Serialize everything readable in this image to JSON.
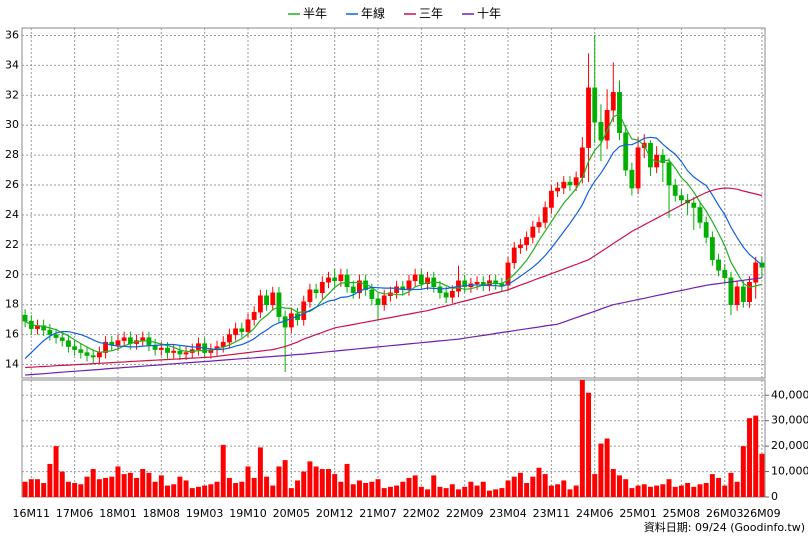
{
  "chart_data": {
    "type": "candlestick",
    "categories": [
      null,
      "16M11",
      null,
      null,
      null,
      null,
      null,
      null,
      "17M06",
      null,
      null,
      null,
      null,
      null,
      null,
      "18M01",
      null,
      null,
      null,
      null,
      null,
      null,
      "18M08",
      null,
      null,
      null,
      null,
      null,
      null,
      "19M03",
      null,
      null,
      null,
      null,
      null,
      null,
      "19M10",
      null,
      null,
      null,
      null,
      null,
      null,
      "20M05",
      null,
      null,
      null,
      null,
      null,
      null,
      "20M12",
      null,
      null,
      null,
      null,
      null,
      null,
      "21M07",
      null,
      null,
      null,
      null,
      null,
      null,
      "22M02",
      null,
      null,
      null,
      null,
      null,
      null,
      "22M09",
      null,
      null,
      null,
      null,
      null,
      null,
      "23M04",
      null,
      null,
      null,
      null,
      null,
      null,
      "23M11",
      null,
      null,
      null,
      null,
      null,
      null,
      "24M06",
      null,
      null,
      null,
      null,
      null,
      null,
      "25M01",
      null,
      null,
      null,
      null,
      null,
      null,
      "25M08",
      null,
      null,
      null,
      null,
      null,
      null,
      "26M03",
      null,
      null,
      null,
      null,
      null,
      "26M09"
    ],
    "open": [
      17.3,
      16.9,
      16.4,
      16.6,
      16.3,
      16.0,
      15.8,
      15.6,
      15.2,
      15.0,
      14.8,
      14.6,
      14.5,
      14.8,
      15.5,
      15.3,
      15.6,
      15.8,
      15.4,
      15.6,
      15.8,
      15.3,
      15.0,
      15.1,
      14.8,
      14.9,
      14.7,
      14.8,
      15.0,
      15.4,
      14.8,
      15.0,
      15.2,
      15.5,
      16.0,
      16.4,
      16.2,
      17.0,
      17.5,
      18.6,
      18.0,
      18.8,
      17.2,
      16.5,
      17.4,
      17.0,
      18.2,
      19.0,
      18.8,
      19.5,
      19.8,
      19.6,
      20.0,
      19.2,
      18.8,
      19.6,
      19.0,
      18.4,
      18.0,
      18.6,
      18.8,
      19.2,
      19.0,
      19.6,
      20.0,
      19.4,
      19.8,
      19.2,
      18.8,
      18.5,
      18.9,
      19.6,
      19.2,
      19.4,
      19.5,
      19.3,
      19.6,
      19.4,
      19.3,
      20.8,
      21.8,
      22.0,
      22.5,
      23.2,
      23.5,
      24.5,
      25.6,
      25.8,
      26.2,
      26.0,
      26.5,
      28.5,
      32.5,
      30.2,
      29.0,
      31.0,
      32.2,
      29.5,
      27.0,
      25.8,
      28.5,
      28.8,
      27.2,
      28.0,
      27.5,
      26.0,
      25.3,
      25.0,
      24.8,
      24.5,
      23.5,
      22.5,
      21.0,
      20.3,
      19.8,
      18.0,
      19.2,
      18.2,
      19.5,
      20.8
    ],
    "high": [
      17.7,
      17.3,
      17.0,
      17.0,
      16.7,
      16.4,
      16.2,
      16.0,
      15.6,
      15.4,
      15.2,
      15.0,
      15.2,
      15.9,
      15.9,
      16.0,
      16.2,
      16.2,
      16.0,
      16.2,
      16.2,
      15.7,
      15.5,
      15.5,
      15.3,
      15.3,
      15.2,
      15.4,
      15.8,
      15.8,
      15.4,
      15.6,
      15.9,
      16.4,
      16.8,
      16.8,
      17.4,
      17.9,
      19.0,
      19.0,
      19.2,
      19.2,
      17.6,
      17.8,
      17.8,
      18.6,
      19.4,
      19.4,
      19.9,
      20.2,
      20.4,
      20.4,
      20.4,
      19.6,
      20.0,
      20.0,
      19.4,
      18.8,
      19.0,
      19.2,
      19.6,
      19.6,
      20.0,
      20.4,
      20.4,
      20.2,
      20.2,
      19.6,
      19.2,
      19.3,
      20.6,
      20.0,
      19.8,
      19.9,
      19.9,
      20.0,
      20.0,
      19.8,
      21.2,
      22.2,
      22.4,
      22.9,
      23.6,
      23.9,
      24.9,
      26.0,
      26.2,
      26.6,
      26.6,
      26.9,
      29.2,
      34.8,
      36.0,
      31.4,
      32.4,
      34.2,
      33.0,
      30.0,
      27.5,
      29.2,
      29.4,
      29.0,
      28.6,
      28.4,
      27.8,
      26.4,
      25.7,
      25.4,
      25.2,
      24.9,
      23.9,
      22.9,
      21.4,
      20.7,
      20.2,
      19.6,
      19.6,
      19.9,
      21.2,
      21.2
    ],
    "low": [
      16.5,
      16.0,
      16.0,
      15.9,
      15.6,
      15.4,
      15.2,
      14.8,
      14.6,
      14.4,
      14.2,
      14.1,
      14.1,
      14.4,
      14.9,
      14.9,
      15.2,
      15.0,
      15.0,
      15.2,
      14.9,
      14.6,
      14.6,
      14.4,
      14.4,
      14.3,
      14.3,
      14.4,
      14.6,
      14.4,
      14.4,
      14.6,
      14.8,
      15.1,
      15.6,
      15.8,
      15.8,
      16.6,
      17.1,
      17.6,
      17.6,
      16.8,
      13.5,
      16.1,
      16.6,
      16.6,
      17.8,
      18.4,
      18.4,
      19.1,
      19.2,
      19.2,
      18.8,
      18.4,
      18.4,
      18.6,
      18.0,
      17.0,
      17.6,
      18.2,
      18.4,
      18.6,
      18.6,
      19.2,
      19.0,
      19.0,
      18.8,
      18.4,
      18.1,
      18.1,
      18.5,
      18.8,
      18.8,
      19.0,
      18.9,
      18.9,
      19.0,
      18.9,
      18.9,
      20.4,
      21.4,
      21.6,
      22.1,
      22.8,
      23.1,
      24.1,
      25.2,
      25.4,
      25.6,
      25.6,
      26.1,
      26.2,
      28.8,
      27.6,
      28.4,
      30.2,
      29.0,
      26.6,
      25.3,
      25.4,
      27.8,
      26.6,
      26.8,
      26.2,
      23.8,
      24.9,
      24.6,
      24.0,
      23.0,
      23.1,
      22.1,
      20.6,
      19.9,
      19.4,
      17.3,
      17.6,
      17.8,
      17.8,
      18.4,
      19.8
    ],
    "close": [
      16.9,
      16.4,
      16.6,
      16.3,
      16.0,
      15.8,
      15.6,
      15.2,
      15.0,
      14.8,
      14.6,
      14.5,
      14.8,
      15.5,
      15.3,
      15.6,
      15.8,
      15.4,
      15.6,
      15.8,
      15.3,
      15.0,
      15.1,
      14.8,
      14.9,
      14.7,
      14.8,
      15.0,
      15.4,
      14.8,
      15.0,
      15.2,
      15.5,
      16.0,
      16.4,
      16.2,
      17.0,
      17.5,
      18.6,
      18.0,
      18.8,
      17.2,
      16.5,
      17.4,
      17.0,
      18.2,
      19.0,
      18.8,
      19.5,
      19.8,
      19.6,
      20.0,
      19.2,
      18.8,
      19.6,
      19.0,
      18.4,
      18.0,
      18.6,
      18.8,
      19.2,
      19.0,
      19.6,
      20.0,
      19.4,
      19.8,
      19.2,
      18.8,
      18.5,
      18.9,
      19.6,
      19.2,
      19.4,
      19.5,
      19.3,
      19.6,
      19.4,
      19.3,
      20.8,
      21.8,
      22.0,
      22.5,
      23.2,
      23.5,
      24.5,
      25.6,
      25.8,
      26.2,
      26.0,
      26.5,
      28.5,
      32.5,
      30.2,
      29.0,
      31.0,
      32.2,
      29.5,
      27.0,
      25.8,
      28.5,
      28.8,
      27.2,
      28.0,
      27.5,
      26.0,
      25.3,
      25.0,
      24.8,
      24.5,
      23.5,
      22.5,
      21.0,
      20.3,
      19.8,
      18.0,
      19.2,
      18.2,
      19.5,
      20.8,
      20.5
    ],
    "up_color": "#ff0000",
    "down_color": "#00b000",
    "series": [
      {
        "name": "半年",
        "color": "#22b022",
        "values": [
          16.9,
          16.65,
          16.6,
          16.55,
          16.44,
          16.33,
          16.12,
          15.92,
          15.65,
          15.4,
          15.17,
          14.95,
          14.82,
          14.87,
          14.92,
          15.05,
          15.25,
          15.4,
          15.53,
          15.58,
          15.58,
          15.48,
          15.37,
          15.27,
          15.15,
          14.97,
          14.88,
          14.88,
          14.93,
          14.93,
          14.95,
          15.03,
          15.15,
          15.32,
          15.52,
          15.72,
          16.05,
          16.43,
          16.95,
          17.28,
          17.68,
          17.85,
          17.77,
          17.75,
          17.48,
          17.52,
          17.55,
          17.82,
          18.32,
          18.72,
          19.15,
          19.45,
          19.48,
          19.48,
          19.5,
          19.37,
          19.17,
          18.83,
          18.73,
          18.73,
          18.67,
          18.67,
          18.87,
          19.2,
          19.33,
          19.5,
          19.5,
          19.47,
          19.28,
          19.1,
          19.13,
          19.03,
          19.07,
          19.18,
          19.32,
          19.43,
          19.4,
          19.42,
          19.65,
          20.03,
          20.48,
          20.97,
          21.6,
          22.3,
          22.92,
          23.55,
          24.18,
          24.8,
          25.27,
          25.77,
          26.43,
          27.58,
          28.32,
          28.78,
          29.62,
          30.57,
          30.73,
          29.82,
          29.08,
          29.0,
          28.63,
          27.8,
          27.55,
          27.63,
          27.67,
          27.13,
          26.5,
          26.1,
          25.52,
          24.85,
          24.27,
          23.55,
          22.77,
          21.93,
          20.85,
          20.13,
          19.42,
          19.17,
          19.25,
          19.37
        ]
      },
      {
        "name": "年線",
        "color": "#1060e0",
        "values": [
          14.4,
          14.8,
          15.2,
          15.6,
          15.9,
          16.1,
          16.2,
          16.2,
          16.1,
          16.0,
          15.85,
          15.65,
          15.47,
          15.4,
          15.29,
          15.23,
          15.21,
          15.18,
          15.18,
          15.23,
          15.25,
          15.27,
          15.31,
          15.34,
          15.34,
          15.28,
          15.23,
          15.18,
          15.15,
          15.1,
          15.05,
          15.0,
          15.02,
          15.1,
          15.23,
          15.33,
          15.5,
          15.73,
          16.05,
          16.3,
          16.6,
          16.79,
          16.91,
          17.09,
          17.22,
          17.4,
          17.62,
          17.84,
          18.05,
          18.24,
          18.32,
          18.49,
          18.52,
          18.65,
          18.91,
          19.05,
          19.16,
          19.14,
          19.11,
          19.11,
          19.09,
          19.02,
          19.02,
          19.02,
          19.03,
          19.12,
          19.09,
          19.07,
          19.08,
          19.15,
          19.23,
          19.27,
          19.29,
          19.33,
          19.3,
          19.27,
          19.27,
          19.23,
          19.36,
          19.61,
          19.9,
          20.2,
          20.5,
          20.86,
          21.29,
          21.79,
          22.33,
          22.89,
          23.44,
          24.04,
          24.68,
          25.57,
          26.25,
          26.79,
          27.45,
          28.17,
          28.58,
          28.7,
          28.7,
          28.89,
          29.13,
          29.19,
          29.14,
          28.73,
          28.38,
          28.07,
          27.57,
          26.95,
          26.54,
          26.24,
          25.97,
          25.34,
          24.64,
          24.02,
          23.19,
          22.49,
          21.85,
          21.36,
          21.01,
          20.65
        ]
      },
      {
        "name": "三年",
        "color": "#d0104a",
        "values": [
          13.8,
          13.82,
          13.85,
          13.87,
          13.89,
          13.92,
          13.94,
          13.96,
          13.99,
          14.01,
          14.03,
          14.06,
          14.08,
          14.1,
          14.13,
          14.15,
          14.17,
          14.2,
          14.22,
          14.24,
          14.27,
          14.29,
          14.31,
          14.34,
          14.36,
          14.38,
          14.41,
          14.43,
          14.45,
          14.48,
          14.5,
          14.55,
          14.6,
          14.65,
          14.7,
          14.75,
          14.8,
          14.85,
          14.9,
          14.95,
          15.0,
          15.1,
          15.2,
          15.35,
          15.5,
          15.7,
          15.85,
          16.0,
          16.15,
          16.3,
          16.45,
          16.53,
          16.6,
          16.68,
          16.76,
          16.83,
          16.91,
          16.99,
          17.07,
          17.14,
          17.22,
          17.3,
          17.37,
          17.45,
          17.53,
          17.6,
          17.71,
          17.82,
          17.92,
          18.03,
          18.14,
          18.25,
          18.35,
          18.46,
          18.57,
          18.68,
          18.78,
          18.89,
          19.0,
          19.15,
          19.31,
          19.46,
          19.62,
          19.77,
          19.92,
          20.08,
          20.23,
          20.38,
          20.54,
          20.69,
          20.85,
          21.0,
          21.27,
          21.54,
          21.81,
          22.09,
          22.36,
          22.63,
          22.9,
          23.12,
          23.34,
          23.56,
          23.78,
          24.0,
          24.22,
          24.44,
          24.66,
          24.88,
          25.1,
          25.3,
          25.5,
          25.65,
          25.75,
          25.8,
          25.78,
          25.72,
          25.6,
          25.5,
          25.4,
          25.3
        ]
      },
      {
        "name": "十年",
        "color": "#7020b0",
        "values": [
          13.3,
          13.33,
          13.36,
          13.39,
          13.42,
          13.46,
          13.49,
          13.52,
          13.55,
          13.58,
          13.61,
          13.64,
          13.67,
          13.71,
          13.74,
          13.77,
          13.8,
          13.83,
          13.86,
          13.89,
          13.92,
          13.95,
          13.98,
          14.02,
          14.05,
          14.08,
          14.11,
          14.14,
          14.17,
          14.2,
          14.23,
          14.26,
          14.3,
          14.33,
          14.36,
          14.39,
          14.42,
          14.45,
          14.48,
          14.51,
          14.54,
          14.57,
          14.6,
          14.64,
          14.67,
          14.7,
          14.74,
          14.78,
          14.82,
          14.86,
          14.9,
          14.94,
          14.98,
          15.02,
          15.06,
          15.1,
          15.14,
          15.18,
          15.22,
          15.26,
          15.3,
          15.34,
          15.38,
          15.42,
          15.46,
          15.5,
          15.54,
          15.58,
          15.62,
          15.66,
          15.7,
          15.76,
          15.83,
          15.89,
          15.95,
          16.01,
          16.08,
          16.14,
          16.2,
          16.26,
          16.33,
          16.39,
          16.45,
          16.51,
          16.58,
          16.64,
          16.7,
          16.84,
          16.99,
          17.13,
          17.28,
          17.42,
          17.56,
          17.71,
          17.86,
          18.0,
          18.09,
          18.17,
          18.26,
          18.35,
          18.43,
          18.52,
          18.61,
          18.69,
          18.78,
          18.87,
          18.95,
          19.04,
          19.13,
          19.21,
          19.3,
          19.36,
          19.41,
          19.47,
          19.52,
          19.58,
          19.63,
          19.69,
          19.74,
          19.8
        ]
      }
    ],
    "ylim": [
      13.1,
      36.5
    ],
    "yticks": [
      14,
      16,
      18,
      20,
      22,
      24,
      26,
      28,
      30,
      32,
      34,
      36
    ],
    "volume": {
      "color": "#ff0000",
      "values": [
        6000,
        7000,
        7000,
        5500,
        13000,
        20000,
        10000,
        6000,
        5500,
        5000,
        8000,
        11000,
        7000,
        7500,
        8000,
        12000,
        9000,
        9500,
        7500,
        11000,
        9500,
        6000,
        8500,
        4500,
        5000,
        8000,
        6500,
        3500,
        4000,
        4500,
        5000,
        6000,
        20500,
        7500,
        5500,
        6000,
        12000,
        7500,
        19500,
        8000,
        4500,
        12000,
        14500,
        3500,
        6500,
        10000,
        14000,
        12000,
        11000,
        11000,
        9000,
        6000,
        13000,
        5000,
        6500,
        5500,
        6000,
        7000,
        3500,
        4000,
        4500,
        6000,
        7500,
        8500,
        4000,
        3000,
        8500,
        4000,
        3500,
        5000,
        3000,
        4000,
        6000,
        4500,
        6000,
        2500,
        3000,
        3500,
        6500,
        8000,
        9500,
        5500,
        8000,
        11500,
        9000,
        4500,
        5000,
        6500,
        3000,
        4500,
        46000,
        41000,
        9000,
        21000,
        23000,
        11000,
        8500,
        7000,
        3500,
        4500,
        5000,
        4000,
        4500,
        5000,
        7000,
        4000,
        4500,
        5500,
        4000,
        5000,
        5500,
        9000,
        7500,
        4500,
        9500,
        6000,
        20000,
        31000,
        32000,
        17000
      ],
      "ylim": [
        0,
        46000
      ],
      "yticks": [
        0,
        {
          "value": 10000,
          "label": "10,000"
        },
        {
          "value": 20000,
          "label": "20,000"
        },
        {
          "value": 30000,
          "label": "30,000"
        },
        {
          "value": 40000,
          "label": "40,000"
        }
      ]
    },
    "grid": true,
    "footer": "資料日期: 09/24 (Goodinfo.tw)"
  }
}
